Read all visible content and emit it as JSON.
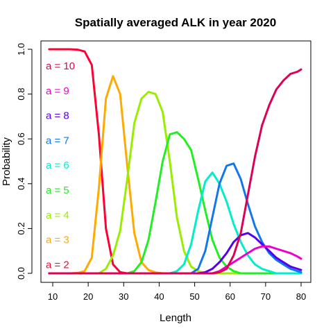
{
  "chart_data": {
    "type": "line",
    "title": "Spatially averaged ALK in  year 2020",
    "xlabel": "Length",
    "ylabel": "Probability",
    "xlim": [
      10,
      80
    ],
    "ylim": [
      0,
      1
    ],
    "x_ticks": [
      "10",
      "20",
      "30",
      "40",
      "50",
      "60",
      "70",
      "80"
    ],
    "y_ticks": [
      "0.0",
      "0.2",
      "0.4",
      "0.6",
      "0.8",
      "1.0"
    ],
    "grid": false,
    "legend_placement": "left",
    "x": [
      9,
      11,
      13,
      15,
      17,
      19,
      21,
      23,
      25,
      27,
      29,
      31,
      33,
      35,
      37,
      39,
      41,
      43,
      45,
      47,
      49,
      51,
      53,
      55,
      57,
      59,
      61,
      63,
      65,
      67,
      69,
      71,
      73,
      75,
      77,
      79,
      80
    ],
    "series": [
      {
        "name": "a = 2",
        "color": "#ff0033",
        "values": [
          1.0,
          1.0,
          1.0,
          1.0,
          0.998,
          0.99,
          0.93,
          0.62,
          0.2,
          0.04,
          0.005,
          0,
          0,
          0,
          0,
          0,
          0,
          0,
          0,
          0,
          0,
          0,
          0,
          0,
          0,
          0,
          0,
          0,
          0,
          0,
          0,
          0,
          0,
          0,
          0,
          0,
          0
        ]
      },
      {
        "name": "a = 3",
        "color": "#ffaa00",
        "values": [
          0,
          0,
          0,
          0,
          0.002,
          0.01,
          0.07,
          0.38,
          0.78,
          0.88,
          0.8,
          0.48,
          0.18,
          0.05,
          0.015,
          0.004,
          0,
          0,
          0,
          0,
          0,
          0,
          0,
          0,
          0,
          0,
          0,
          0,
          0,
          0,
          0,
          0,
          0,
          0,
          0,
          0,
          0
        ]
      },
      {
        "name": "a = 4",
        "color": "#99ee00",
        "values": [
          0,
          0,
          0,
          0,
          0,
          0,
          0,
          0,
          0.02,
          0.08,
          0.19,
          0.42,
          0.67,
          0.78,
          0.81,
          0.8,
          0.72,
          0.5,
          0.25,
          0.1,
          0.03,
          0.01,
          0,
          0,
          0,
          0,
          0,
          0,
          0,
          0,
          0,
          0,
          0,
          0,
          0,
          0,
          0
        ]
      },
      {
        "name": "a = 5",
        "color": "#22ee22",
        "values": [
          0,
          0,
          0,
          0,
          0,
          0,
          0,
          0,
          0,
          0,
          0,
          0,
          0.01,
          0.05,
          0.15,
          0.32,
          0.5,
          0.62,
          0.63,
          0.6,
          0.55,
          0.42,
          0.28,
          0.15,
          0.07,
          0.03,
          0.01,
          0,
          0,
          0,
          0,
          0,
          0,
          0,
          0,
          0,
          0
        ]
      },
      {
        "name": "a = 6",
        "color": "#00eecc",
        "values": [
          0,
          0,
          0,
          0,
          0,
          0,
          0,
          0,
          0,
          0,
          0,
          0,
          0,
          0,
          0,
          0,
          0,
          0,
          0.01,
          0.04,
          0.13,
          0.28,
          0.41,
          0.45,
          0.4,
          0.32,
          0.22,
          0.14,
          0.08,
          0.04,
          0.02,
          0.01,
          0,
          0,
          0,
          0,
          0
        ]
      },
      {
        "name": "a = 7",
        "color": "#1177ee",
        "values": [
          0,
          0,
          0,
          0,
          0,
          0,
          0,
          0,
          0,
          0,
          0,
          0,
          0,
          0,
          0,
          0,
          0,
          0,
          0,
          0,
          0,
          0.02,
          0.1,
          0.25,
          0.4,
          0.48,
          0.49,
          0.42,
          0.31,
          0.21,
          0.14,
          0.09,
          0.06,
          0.04,
          0.02,
          0.01,
          0.005
        ]
      },
      {
        "name": "a = 8",
        "color": "#5500ee",
        "values": [
          0,
          0,
          0,
          0,
          0,
          0,
          0,
          0,
          0,
          0,
          0,
          0,
          0,
          0,
          0,
          0,
          0,
          0,
          0,
          0,
          0,
          0,
          0.005,
          0.02,
          0.05,
          0.09,
          0.14,
          0.17,
          0.18,
          0.16,
          0.13,
          0.1,
          0.07,
          0.05,
          0.03,
          0.02,
          0.015
        ]
      },
      {
        "name": "a = 9",
        "color": "#ee00cc",
        "values": [
          0,
          0,
          0,
          0,
          0,
          0,
          0,
          0,
          0,
          0,
          0,
          0,
          0,
          0,
          0,
          0,
          0,
          0,
          0,
          0,
          0,
          0,
          0,
          0,
          0.01,
          0.03,
          0.05,
          0.07,
          0.09,
          0.11,
          0.12,
          0.12,
          0.11,
          0.1,
          0.09,
          0.075,
          0.065
        ]
      },
      {
        "name": "a = 10",
        "color": "#dd0055",
        "values": [
          0,
          0,
          0,
          0,
          0,
          0,
          0,
          0,
          0,
          0,
          0,
          0,
          0,
          0,
          0,
          0,
          0,
          0,
          0,
          0,
          0,
          0,
          0,
          0,
          0.005,
          0.02,
          0.08,
          0.18,
          0.35,
          0.52,
          0.66,
          0.75,
          0.82,
          0.86,
          0.89,
          0.9,
          0.91
        ]
      }
    ]
  }
}
